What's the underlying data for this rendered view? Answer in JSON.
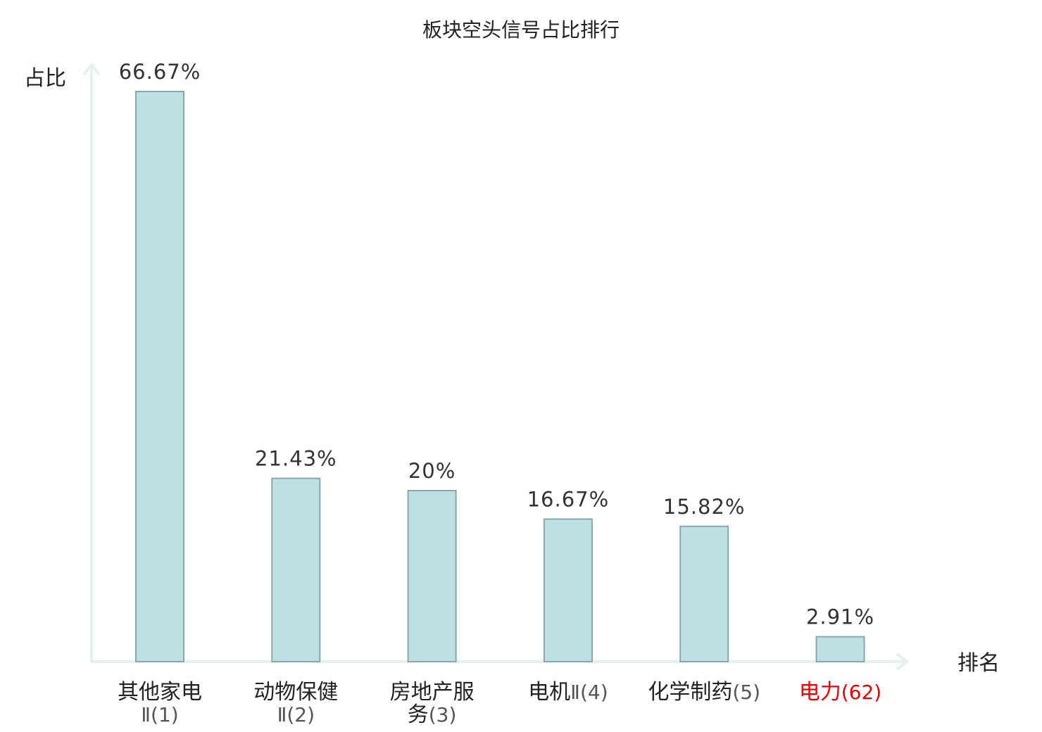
{
  "chart_data": {
    "type": "bar",
    "title": "板块空头信号占比排行",
    "ylabel": "占比",
    "xlabel": "排名",
    "categories": [
      {
        "lines": [
          {
            "name": "其他家电",
            "rank": ""
          },
          {
            "name": "",
            "rank": "Ⅱ(1)"
          }
        ]
      },
      {
        "lines": [
          {
            "name": "动物保健",
            "rank": ""
          },
          {
            "name": "",
            "rank": "Ⅱ(2)"
          }
        ]
      },
      {
        "lines": [
          {
            "name": "房地产服",
            "rank": ""
          },
          {
            "name": "务",
            "rank": "(3)"
          }
        ]
      },
      {
        "lines": [
          {
            "name": "电机",
            "rank": "Ⅱ(4)"
          }
        ]
      },
      {
        "lines": [
          {
            "name": "化学制药",
            "rank": "(5)"
          }
        ]
      },
      {
        "lines": [
          {
            "name": "电力",
            "rank": "(62)"
          }
        ],
        "highlight": true
      }
    ],
    "values": [
      66.67,
      21.43,
      20,
      16.67,
      15.82,
      2.91
    ],
    "value_labels": [
      "66.67%",
      "21.43%",
      "20%",
      "16.67%",
      "15.82%",
      "2.91%"
    ],
    "ylim": [
      0,
      70
    ],
    "grid": false,
    "legend": "none",
    "colors": {
      "bar_fill": "#bde0e2",
      "bar_stroke": "#8aa8a9",
      "axis": "#e2f3f0",
      "highlight_text": "#e60000",
      "text": "#222222"
    }
  }
}
